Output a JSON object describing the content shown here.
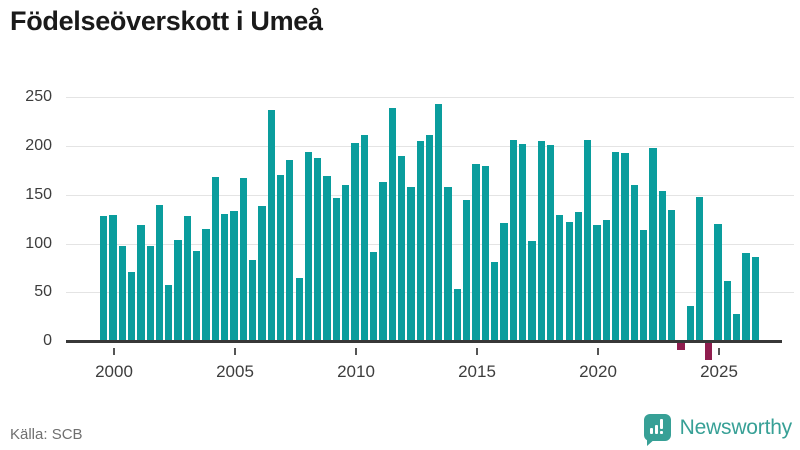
{
  "title": "Födelseöverskott i Umeå",
  "source": "Källa: SCB",
  "branding": {
    "name": "Newsworthy",
    "icon": "newsworthy-speech-bubble-chart-icon"
  },
  "colors": {
    "bar_positive": "#0a9d9d",
    "bar_negative": "#8f1d4e",
    "gridline": "#e4e4e4",
    "axis": "#383838",
    "tick_text": "#3d3d3d",
    "title_text": "#1a1a1a",
    "source_text": "#6f6f6f",
    "brand_teal": "#37a096"
  },
  "chart_data": {
    "type": "bar",
    "title": "Födelseöverskott i Umeå",
    "xlabel": "",
    "ylabel": "",
    "x_tick_labels": [
      "2000",
      "2005",
      "2010",
      "2015",
      "2020",
      "2025"
    ],
    "y_tick_labels": [
      0,
      50,
      100,
      150,
      200,
      250
    ],
    "ylim": [
      -30,
      255
    ],
    "grid": true,
    "legend": "none",
    "values": [
      128,
      129,
      97,
      71,
      119,
      97,
      140,
      57,
      104,
      128,
      92,
      115,
      168,
      130,
      133,
      167,
      83,
      139,
      237,
      170,
      186,
      65,
      194,
      188,
      169,
      147,
      160,
      203,
      211,
      91,
      163,
      239,
      190,
      158,
      205,
      211,
      243,
      158,
      53,
      145,
      182,
      180,
      81,
      121,
      206,
      202,
      103,
      205,
      201,
      129,
      122,
      132,
      206,
      119,
      124,
      194,
      193,
      160,
      114,
      198,
      154,
      134,
      -7,
      36,
      148,
      -17,
      120,
      62,
      28,
      90,
      86
    ]
  }
}
